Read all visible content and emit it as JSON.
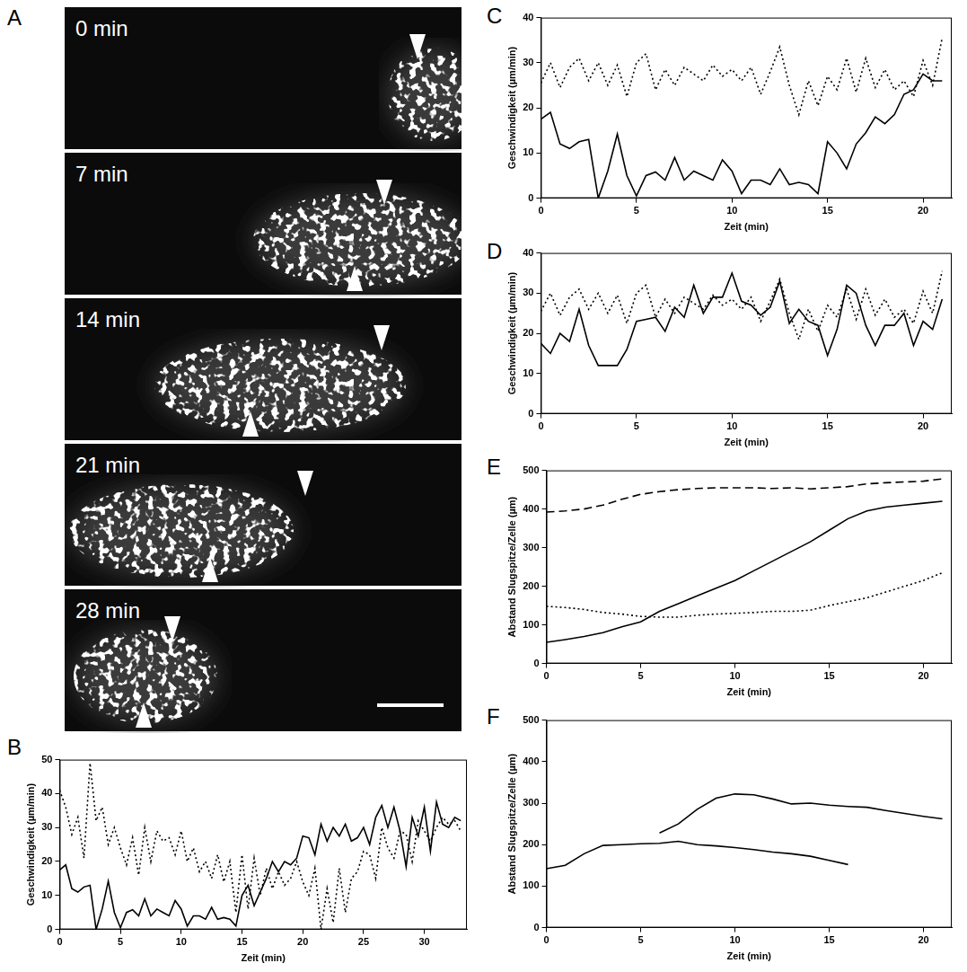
{
  "image_panel": {
    "panel_label": "A",
    "frames": [
      "0 min",
      "7 min",
      "14 min",
      "21 min",
      "28 min"
    ]
  },
  "chart_data": [
    {
      "panel_label": "B",
      "type": "line",
      "x_label": "Zeit (min)",
      "y_label": "Geschwindigkeit (µm/min)",
      "xlim": [
        0,
        33.5
      ],
      "ylim": [
        0,
        50
      ],
      "xticks": [
        0,
        5,
        10,
        15,
        20,
        25,
        30
      ],
      "yticks": [
        0,
        10,
        20,
        30,
        40,
        50
      ],
      "grid": false,
      "x": [
        0,
        0.5,
        1,
        1.5,
        2,
        2.5,
        3,
        3.5,
        4,
        4.5,
        5,
        5.5,
        6,
        6.5,
        7,
        7.5,
        8,
        8.5,
        9,
        9.5,
        10,
        10.5,
        11,
        11.5,
        12,
        12.5,
        13,
        13.5,
        14,
        14.5,
        15,
        15.5,
        16,
        16.5,
        17,
        17.5,
        18,
        18.5,
        19,
        19.5,
        20,
        20.5,
        21,
        21.5,
        22,
        22.5,
        23,
        23.5,
        24,
        24.5,
        25,
        25.5,
        26,
        26.5,
        27,
        27.5,
        28,
        28.5,
        29,
        29.5,
        30,
        30.5,
        31,
        31.5,
        32,
        32.5,
        33
      ],
      "series": [
        {
          "color": "#000000",
          "line_style": "solid",
          "values": [
            17.5,
            19,
            12,
            11,
            12.5,
            13,
            0,
            6,
            14.2,
            5,
            0.5,
            5,
            5.8,
            4,
            9,
            4,
            6,
            5,
            4,
            8.5,
            6,
            1,
            4,
            4,
            3,
            6.5,
            3,
            3.5,
            3,
            1,
            10,
            13,
            7,
            11,
            15,
            20,
            17,
            20,
            19,
            21,
            27.5,
            27,
            22,
            31,
            26,
            30,
            27.5,
            31,
            26,
            27,
            30,
            25,
            33,
            36.5,
            30,
            36,
            29,
            18.5,
            33,
            27.5,
            36,
            23,
            37.5,
            31,
            30,
            33,
            32
          ]
        },
        {
          "color": "#000000",
          "line_style": "dotted",
          "values": [
            41,
            36,
            28,
            33,
            21,
            49,
            32,
            36,
            25,
            30,
            24,
            19,
            27,
            16,
            30,
            20,
            29,
            26,
            27,
            22,
            29,
            20,
            24,
            17,
            20,
            15,
            22,
            14,
            20,
            5,
            22,
            6,
            21,
            10,
            18,
            12,
            17,
            13,
            15,
            20,
            14,
            10,
            18,
            0,
            12,
            2,
            18,
            5,
            15,
            17,
            23,
            22,
            15,
            30,
            24,
            21,
            29,
            28,
            20,
            32,
            29,
            26,
            30,
            33,
            31,
            32,
            29
          ]
        }
      ]
    },
    {
      "panel_label": "C",
      "type": "line",
      "x_label": "Zeit (min)",
      "y_label": "Geschwindigkeit (µm/min)",
      "xlim": [
        0,
        21.5
      ],
      "ylim": [
        0,
        40
      ],
      "xticks": [
        0,
        5,
        10,
        15,
        20
      ],
      "yticks": [
        0,
        10,
        20,
        30,
        40
      ],
      "grid": false,
      "x": [
        0,
        0.5,
        1,
        1.5,
        2,
        2.5,
        3,
        3.5,
        4,
        4.5,
        5,
        5.5,
        6,
        6.5,
        7,
        7.5,
        8,
        8.5,
        9,
        9.5,
        10,
        10.5,
        11,
        11.5,
        12,
        12.5,
        13,
        13.5,
        14,
        14.5,
        15,
        15.5,
        16,
        16.5,
        17,
        17.5,
        18,
        18.5,
        19,
        19.5,
        20,
        20.5,
        21
      ],
      "series": [
        {
          "color": "#000000",
          "line_style": "solid",
          "values": [
            17.5,
            19,
            12,
            11,
            12.5,
            13,
            0,
            6,
            14.2,
            5,
            0.5,
            5,
            5.8,
            4,
            9,
            4,
            6,
            5,
            4,
            8.5,
            6,
            1,
            4,
            4,
            3,
            6.5,
            3,
            3.5,
            3,
            1,
            12.5,
            10,
            6.5,
            12,
            14.5,
            18,
            16.5,
            18.5,
            23,
            24,
            27.5,
            26,
            26
          ]
        },
        {
          "color": "#000000",
          "line_style": "dotted",
          "values": [
            25.5,
            30,
            24.5,
            29,
            31,
            26,
            30,
            25,
            29.5,
            22.5,
            30,
            32,
            24,
            28.5,
            25,
            29,
            27.5,
            26,
            29.5,
            27,
            28.5,
            26,
            29,
            23,
            28,
            33.5,
            25,
            18.5,
            26,
            20.5,
            27,
            24,
            31,
            23.5,
            31,
            24.5,
            28.5,
            24,
            26,
            22.5,
            30.5,
            25,
            35.5
          ]
        }
      ]
    },
    {
      "panel_label": "D",
      "type": "line",
      "x_label": "Zeit (min)",
      "y_label": "Geschwindigkeit (µm/min)",
      "xlim": [
        0,
        21.5
      ],
      "ylim": [
        0,
        40
      ],
      "xticks": [
        0,
        5,
        10,
        15,
        20
      ],
      "yticks": [
        0,
        10,
        20,
        30,
        40
      ],
      "grid": false,
      "x": [
        0,
        0.5,
        1,
        1.5,
        2,
        2.5,
        3,
        3.5,
        4,
        4.5,
        5,
        5.5,
        6,
        6.5,
        7,
        7.5,
        8,
        8.5,
        9,
        9.5,
        10,
        10.5,
        11,
        11.5,
        12,
        12.5,
        13,
        13.5,
        14,
        14.5,
        15,
        15.5,
        16,
        16.5,
        17,
        17.5,
        18,
        18.5,
        19,
        19.5,
        20,
        20.5,
        21
      ],
      "series": [
        {
          "color": "#000000",
          "line_style": "solid",
          "values": [
            17.5,
            15,
            20,
            18,
            26,
            17,
            12,
            12,
            12,
            16,
            23,
            23.5,
            24,
            20.5,
            26.5,
            24,
            32,
            25,
            29,
            29,
            35,
            28,
            27,
            24.5,
            26.5,
            33,
            22.5,
            26,
            23,
            22,
            14.5,
            21,
            32,
            30,
            22,
            17,
            22,
            22,
            25,
            17,
            23,
            21,
            28.5
          ]
        },
        {
          "color": "#000000",
          "line_style": "dotted",
          "values": [
            25.5,
            30,
            24.5,
            29,
            31,
            26,
            30,
            25,
            29.5,
            22.5,
            30,
            32,
            24,
            28.5,
            25,
            29,
            27.5,
            26,
            29.5,
            27,
            28.5,
            26,
            29,
            23,
            28,
            33.5,
            25,
            18.5,
            26,
            20.5,
            27,
            24,
            31,
            23.5,
            31,
            24.5,
            28.5,
            24,
            26,
            22.5,
            30.5,
            25,
            35.5
          ]
        }
      ]
    },
    {
      "panel_label": "E",
      "type": "line",
      "x_label": "Zeit (min)",
      "y_label": "Abstand Slugspitze/Zelle (µm)",
      "xlim": [
        0,
        21.5
      ],
      "ylim": [
        0,
        500
      ],
      "xticks": [
        0,
        5,
        10,
        15,
        20
      ],
      "yticks": [
        0,
        100,
        200,
        300,
        400,
        500
      ],
      "grid": false,
      "x": [
        0,
        1,
        2,
        3,
        4,
        5,
        6,
        7,
        8,
        9,
        10,
        11,
        12,
        13,
        14,
        15,
        16,
        17,
        18,
        19,
        20,
        21
      ],
      "series": [
        {
          "color": "#000000",
          "line_style": "dashed",
          "values": [
            392,
            395,
            400,
            410,
            425,
            438,
            445,
            450,
            453,
            455,
            455,
            455,
            453,
            455,
            452,
            455,
            458,
            465,
            468,
            470,
            472,
            478
          ]
        },
        {
          "color": "#000000",
          "line_style": "solid",
          "values": [
            55,
            62,
            70,
            80,
            95,
            108,
            135,
            155,
            175,
            195,
            215,
            240,
            265,
            290,
            315,
            345,
            375,
            395,
            405,
            410,
            415,
            420
          ]
        },
        {
          "color": "#000000",
          "line_style": "dotted",
          "values": [
            148,
            145,
            140,
            132,
            128,
            122,
            120,
            120,
            125,
            128,
            130,
            132,
            135,
            135,
            138,
            150,
            160,
            170,
            185,
            200,
            215,
            235
          ]
        }
      ]
    },
    {
      "panel_label": "F",
      "type": "line",
      "x_label": "Zeit (min)",
      "y_label": "Abstand Slugspitze/Zelle (µm)",
      "xlim": [
        0,
        21.5
      ],
      "ylim": [
        0,
        500
      ],
      "xticks": [
        0,
        5,
        10,
        15,
        20
      ],
      "yticks": [
        0,
        100,
        200,
        300,
        400,
        500
      ],
      "grid": false,
      "x": [
        0,
        1,
        2,
        3,
        4,
        5,
        6,
        7,
        8,
        9,
        10,
        11,
        12,
        13,
        14,
        15,
        16,
        17,
        18,
        19,
        20,
        21
      ],
      "series": [
        {
          "color": "#000000",
          "line_style": "solid",
          "values": [
            142,
            150,
            178,
            198,
            200,
            202,
            203,
            208,
            200,
            197,
            193,
            188,
            182,
            178,
            172,
            162,
            152,
            null,
            null,
            null,
            null,
            null
          ]
        },
        {
          "color": "#000000",
          "line_style": "solid",
          "values": [
            null,
            null,
            null,
            null,
            null,
            null,
            228,
            250,
            285,
            312,
            322,
            320,
            310,
            298,
            300,
            295,
            292,
            290,
            282,
            275,
            268,
            262
          ]
        }
      ]
    }
  ]
}
